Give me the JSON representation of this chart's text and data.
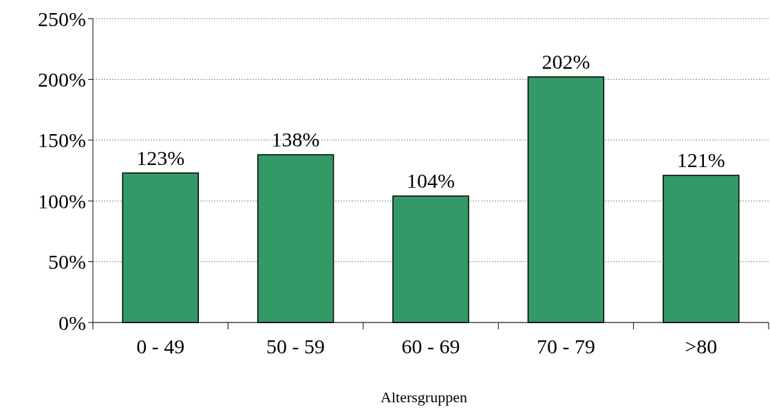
{
  "chart_data": {
    "type": "bar",
    "xlabel": "Altersgruppen",
    "categories": [
      "0 - 49",
      "50 - 59",
      "60 - 69",
      "70 - 79",
      ">80"
    ],
    "values": [
      123,
      138,
      104,
      202,
      121
    ],
    "value_labels": [
      "123%",
      "138%",
      "104%",
      "202%",
      "121%"
    ],
    "color": "#339966",
    "ylim": [
      0,
      250
    ],
    "yticks": [
      {
        "value": 0,
        "label": "0%"
      },
      {
        "value": 50,
        "label": "50%"
      },
      {
        "value": 100,
        "label": "100%"
      },
      {
        "value": 150,
        "label": "150%"
      },
      {
        "value": 200,
        "label": "200%"
      },
      {
        "value": 250,
        "label": "250%"
      }
    ],
    "grid": "y"
  }
}
